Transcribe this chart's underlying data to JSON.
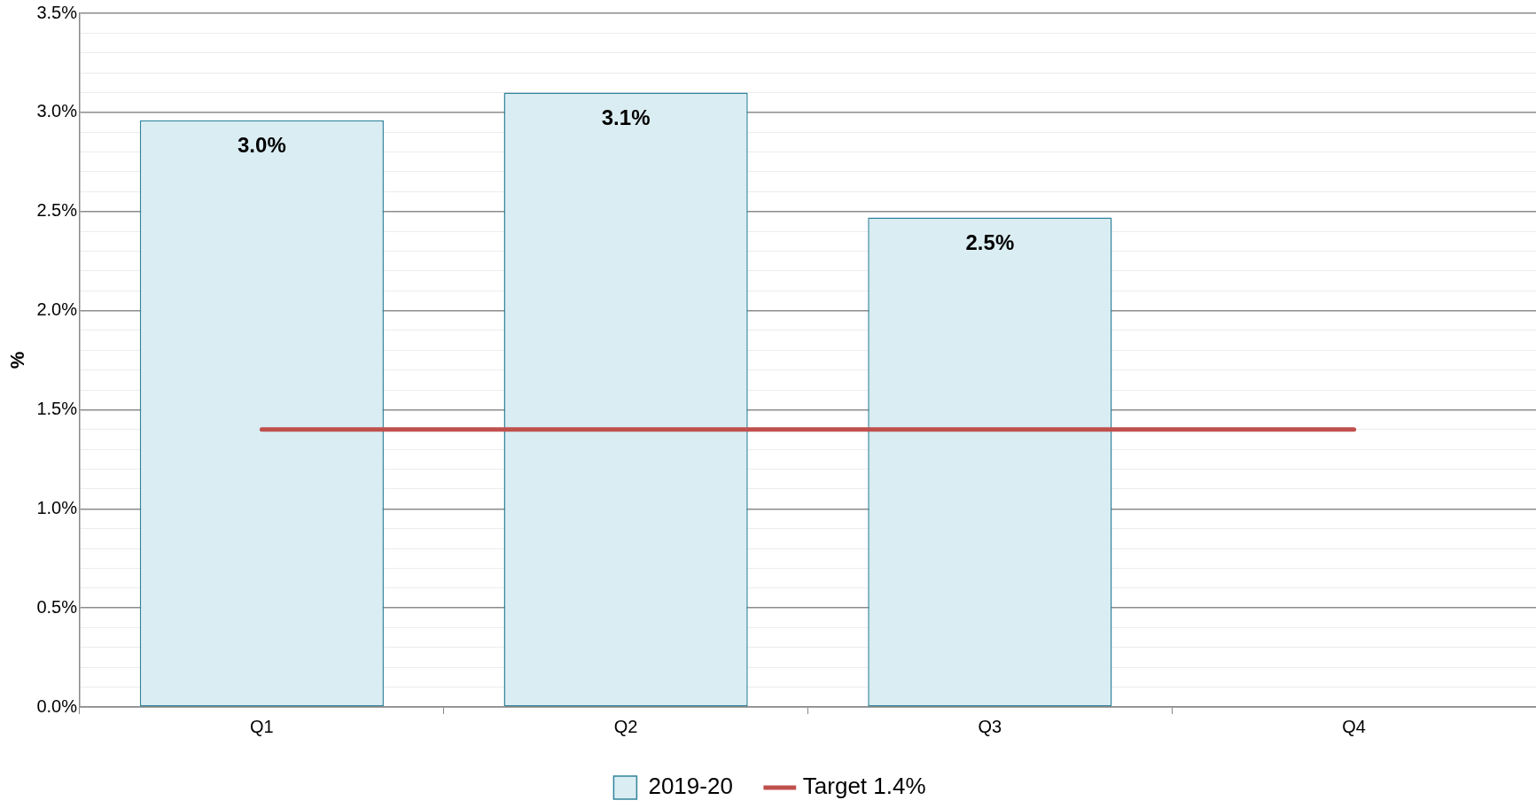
{
  "chart_data": {
    "type": "bar",
    "ylabel": "%",
    "categories": [
      "Q1",
      "Q2",
      "Q3",
      "Q4"
    ],
    "series": [
      {
        "name": "2019-20",
        "color": "#daedf3",
        "values": [
          2.96,
          3.1,
          2.47,
          null
        ],
        "value_labels": [
          "3.0%",
          "3.1%",
          "2.5%",
          null
        ]
      },
      {
        "name": "Target 1.4%",
        "type": "line",
        "color": "#c0504d",
        "values": [
          1.4,
          1.4,
          1.4,
          1.4
        ],
        "marker": "none",
        "line_style": "solid"
      }
    ],
    "ylim": [
      0,
      3.5
    ],
    "yticks": [
      {
        "value": 0,
        "label": "0.0%"
      },
      {
        "value": 0.1,
        "label": null
      },
      {
        "value": 0.2,
        "label": null
      },
      {
        "value": 0.3,
        "label": null
      },
      {
        "value": 0.4,
        "label": null
      },
      {
        "value": 0.5,
        "label": "0.5%"
      },
      {
        "value": 0.6,
        "label": null
      },
      {
        "value": 0.7,
        "label": null
      },
      {
        "value": 0.8,
        "label": null
      },
      {
        "value": 0.9,
        "label": null
      },
      {
        "value": 1.0,
        "label": "1.0%"
      },
      {
        "value": 1.1,
        "label": null
      },
      {
        "value": 1.2,
        "label": null
      },
      {
        "value": 1.3,
        "label": null
      },
      {
        "value": 1.4,
        "label": null
      },
      {
        "value": 1.5,
        "label": "1.5%"
      },
      {
        "value": 1.6,
        "label": null
      },
      {
        "value": 1.7,
        "label": null
      },
      {
        "value": 1.8,
        "label": null
      },
      {
        "value": 1.9,
        "label": null
      },
      {
        "value": 2.0,
        "label": "2.0%"
      },
      {
        "value": 2.1,
        "label": null
      },
      {
        "value": 2.2,
        "label": null
      },
      {
        "value": 2.3,
        "label": null
      },
      {
        "value": 2.4,
        "label": null
      },
      {
        "value": 2.5,
        "label": "2.5%"
      },
      {
        "value": 2.6,
        "label": null
      },
      {
        "value": 2.7,
        "label": null
      },
      {
        "value": 2.8,
        "label": null
      },
      {
        "value": 2.9,
        "label": null
      },
      {
        "value": 3.0,
        "label": "3.0%"
      },
      {
        "value": 3.1,
        "label": null
      },
      {
        "value": 3.2,
        "label": null
      },
      {
        "value": 3.3,
        "label": null
      },
      {
        "value": 3.4,
        "label": null
      },
      {
        "value": 3.5,
        "label": "3.5%"
      }
    ],
    "grid": "y",
    "legend": "bottom"
  }
}
